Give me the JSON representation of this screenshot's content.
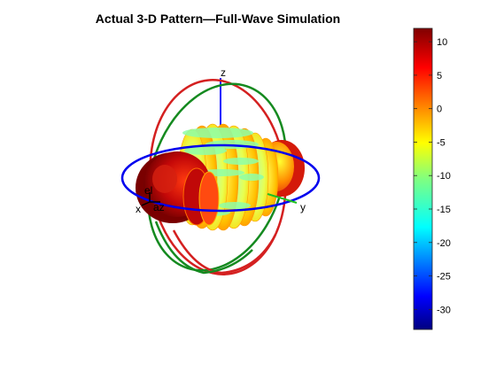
{
  "chart_data": {
    "type": "heatmap",
    "title": "Actual 3-D Pattern—Full-Wave Simulation",
    "axes_labels": {
      "x": "x",
      "y": "y",
      "z": "z",
      "el": "el",
      "az": "az"
    },
    "colorbar": {
      "colormap": "jet",
      "range": [
        -33,
        12
      ],
      "ticks": [
        10,
        5,
        0,
        -5,
        -10,
        -15,
        -20,
        -25,
        -30
      ],
      "tick_labels": [
        "10",
        "5",
        "0",
        "-5",
        "-10",
        "-15",
        "-20",
        "-25",
        "-30"
      ]
    },
    "reference_circles": [
      {
        "plane": "xy",
        "color": "#0000ee"
      },
      {
        "plane": "yz",
        "color": "#d42020"
      },
      {
        "plane": "xz",
        "color": "#158a20"
      }
    ]
  }
}
